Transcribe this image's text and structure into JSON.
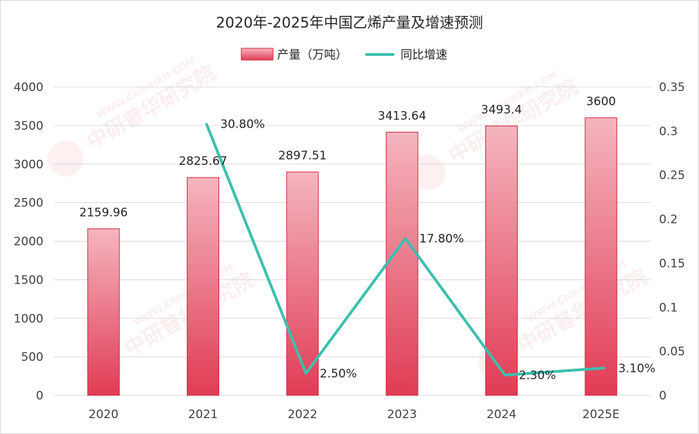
{
  "chart_data": {
    "type": "bar",
    "title": "2020年-2025年中国乙烯产量及增速预测",
    "categories": [
      "2020",
      "2021",
      "2022",
      "2023",
      "2024",
      "2025E"
    ],
    "series": [
      {
        "name": "产量（万吨）",
        "type": "bar",
        "axis": "left",
        "values": [
          2159.96,
          2825.67,
          2897.51,
          3413.64,
          3493.4,
          3600
        ],
        "labels": [
          "2159.96",
          "2825.67",
          "2897.51",
          "3413.64",
          "3493.4",
          "3600"
        ]
      },
      {
        "name": "同比增速",
        "type": "line",
        "axis": "right",
        "values": [
          null,
          0.308,
          0.025,
          0.178,
          0.023,
          0.031
        ],
        "labels": [
          "",
          "30.80%",
          "2.50%",
          "17.80%",
          "2.30%",
          "3.10%"
        ]
      }
    ],
    "y_left": {
      "min": 0,
      "max": 4000,
      "ticks": [
        "0",
        "500",
        "1000",
        "1500",
        "2000",
        "2500",
        "3000",
        "3500",
        "4000"
      ]
    },
    "y_right": {
      "min": 0,
      "max": 0.35,
      "ticks": [
        "0",
        "0.05",
        "0.1",
        "0.15",
        "0.2",
        "0.25",
        "0.3",
        "0.35"
      ]
    },
    "grid": true,
    "legend_position": "top-center",
    "colors": {
      "bar_top": "#f5b5bf",
      "bar_bottom": "#e03c54",
      "bar_border": "#d4243f",
      "line": "#3cbfae"
    }
  }
}
